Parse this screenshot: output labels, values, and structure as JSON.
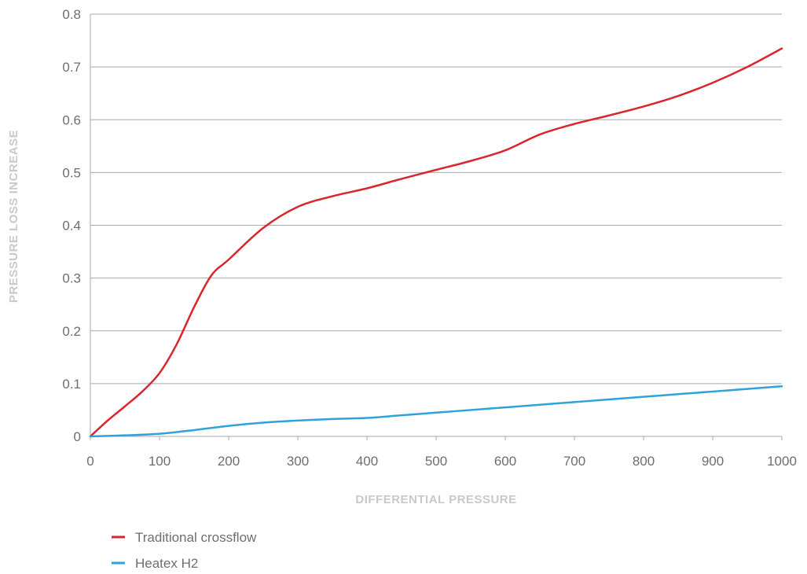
{
  "chart_data": {
    "type": "line",
    "title": "",
    "xlabel": "DIFFERENTIAL PRESSURE",
    "ylabel": "PRESSURE LOSS INCREASE",
    "xlim": [
      0,
      1000
    ],
    "ylim": [
      0,
      0.8
    ],
    "x_ticks": [
      0,
      100,
      200,
      300,
      400,
      500,
      600,
      700,
      800,
      900,
      1000
    ],
    "x_tick_labels": [
      "0",
      "100",
      "200",
      "300",
      "400",
      "500",
      "600",
      "700",
      "800",
      "900",
      "1000"
    ],
    "y_ticks": [
      0,
      0.1,
      0.2,
      0.3,
      0.4,
      0.5,
      0.6,
      0.7,
      0.8
    ],
    "y_tick_labels": [
      "0",
      "0.1",
      "0.2",
      "0.3",
      "0.4",
      "0.5",
      "0.6",
      "0.7",
      "0.8"
    ],
    "grid": "horizontal",
    "legend_position": "bottom-left",
    "series": [
      {
        "name": "Traditional crossflow",
        "color": "#d9262b",
        "x": [
          0,
          25,
          50,
          75,
          100,
          125,
          150,
          175,
          200,
          250,
          300,
          350,
          400,
          450,
          500,
          550,
          600,
          650,
          700,
          750,
          800,
          850,
          900,
          950,
          1000
        ],
        "values": [
          0,
          0.03,
          0.057,
          0.085,
          0.12,
          0.175,
          0.245,
          0.305,
          0.335,
          0.395,
          0.435,
          0.455,
          0.47,
          0.488,
          0.505,
          0.522,
          0.542,
          0.572,
          0.592,
          0.608,
          0.625,
          0.645,
          0.67,
          0.7,
          0.735
        ]
      },
      {
        "name": "Heatex H2",
        "color": "#2ea3d9",
        "x": [
          0,
          50,
          100,
          150,
          200,
          250,
          300,
          350,
          400,
          450,
          500,
          550,
          600,
          650,
          700,
          750,
          800,
          850,
          900,
          950,
          1000
        ],
        "values": [
          0,
          0.002,
          0.005,
          0.012,
          0.02,
          0.026,
          0.03,
          0.033,
          0.035,
          0.04,
          0.045,
          0.05,
          0.055,
          0.06,
          0.065,
          0.07,
          0.075,
          0.08,
          0.085,
          0.09,
          0.095
        ]
      }
    ]
  }
}
